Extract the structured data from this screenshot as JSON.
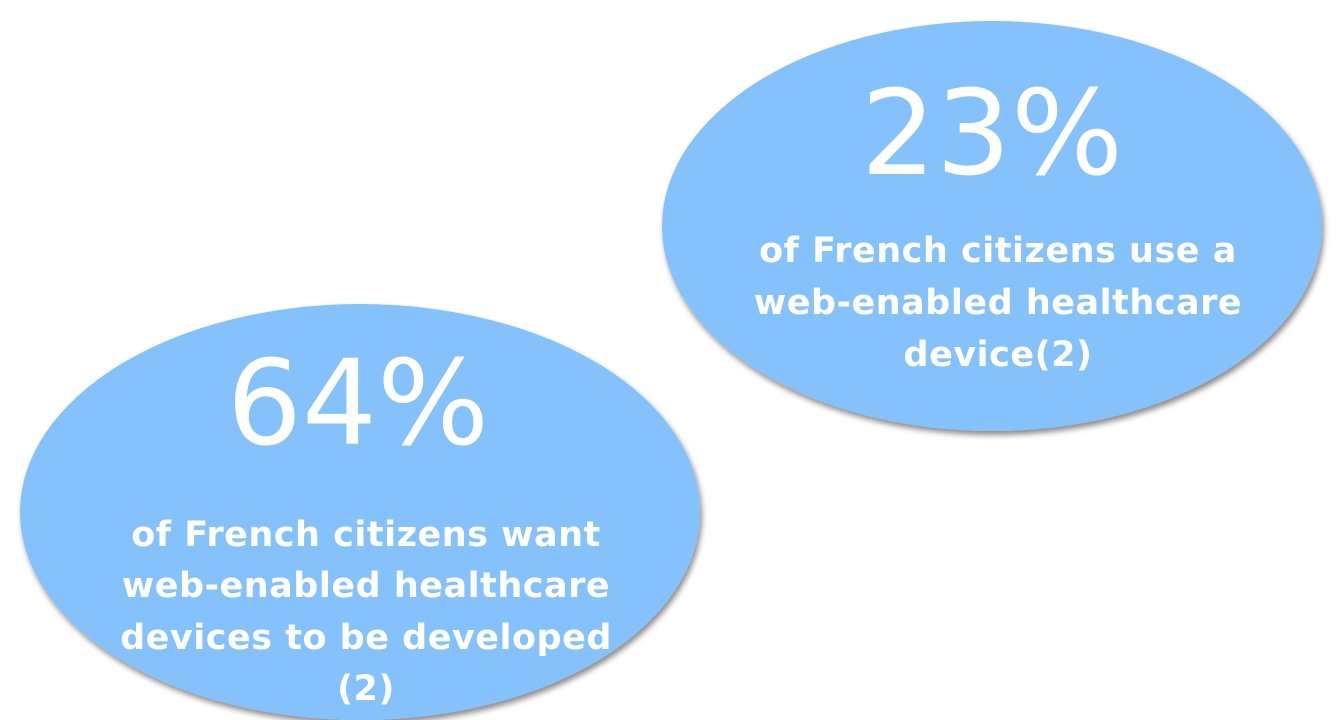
{
  "items": [
    {
      "stat": "23%",
      "lines": [
        "of French citizens use a",
        "web-enabled healthcare",
        "device(2)"
      ]
    },
    {
      "stat": "64%",
      "lines": [
        "of French citizens want",
        "web-enabled healthcare",
        "devices to be developed",
        "(2)"
      ]
    }
  ]
}
